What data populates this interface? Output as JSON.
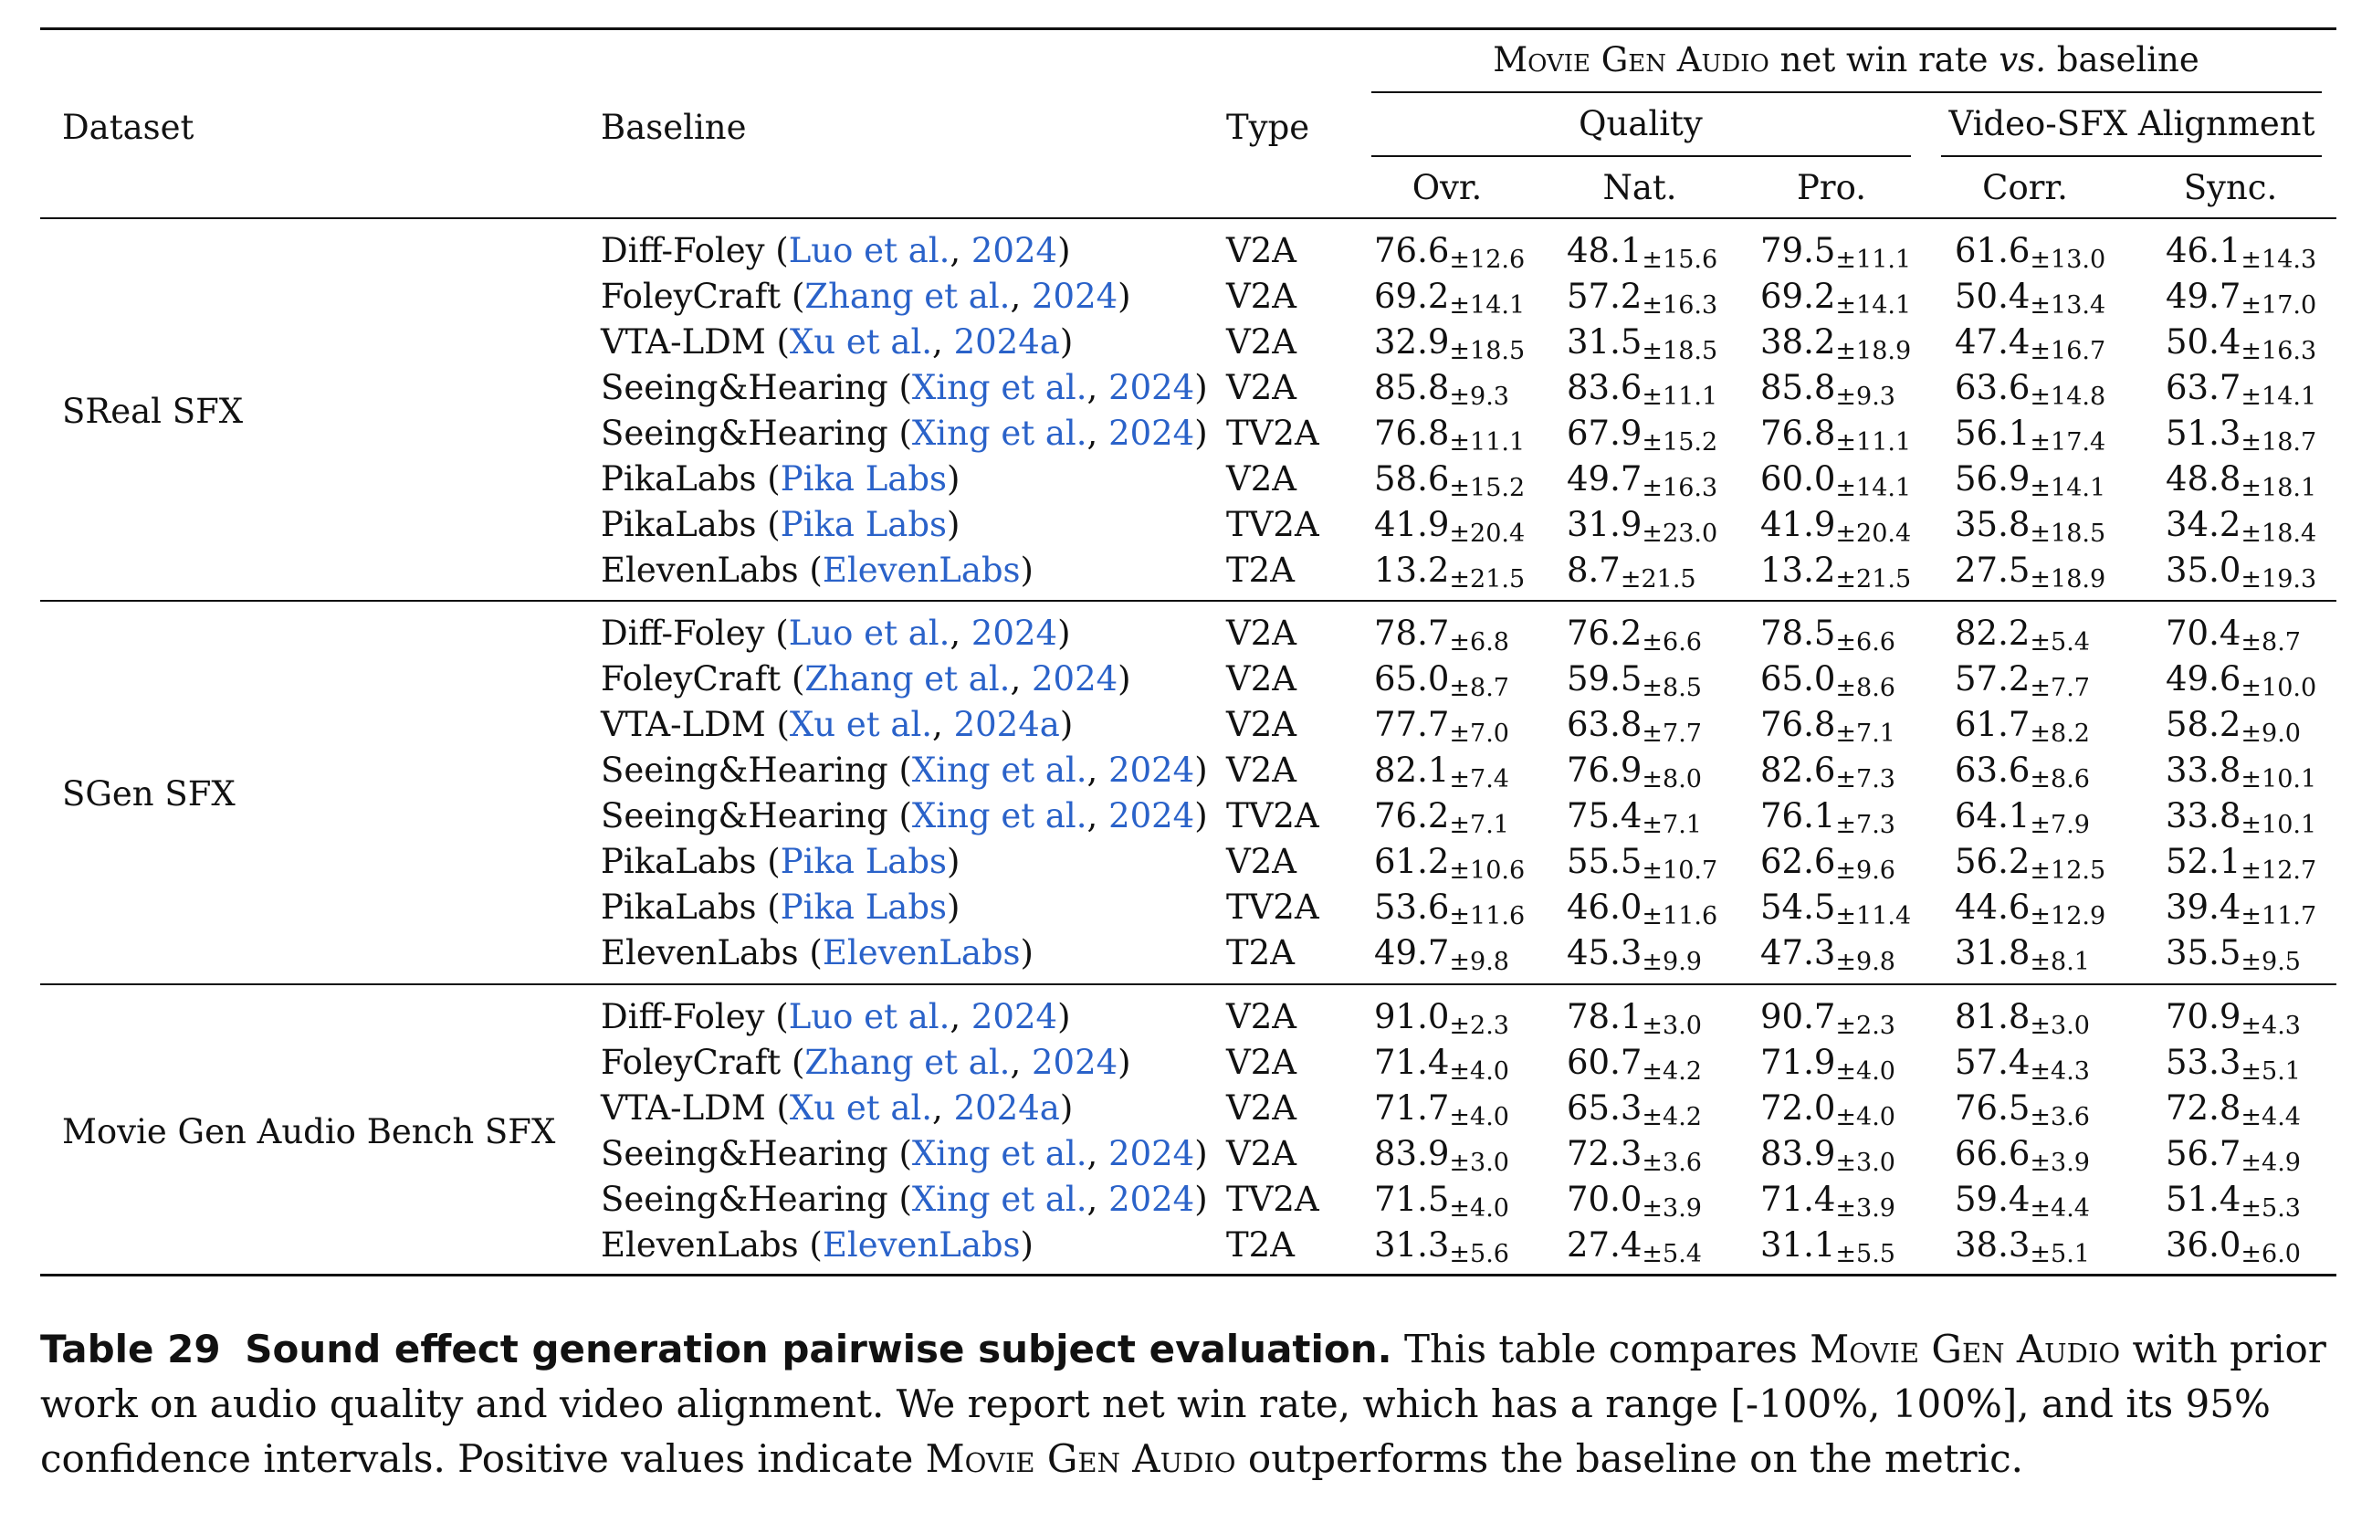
{
  "header": {
    "dataset": "Dataset",
    "baseline": "Baseline",
    "type": "Type",
    "super_prefix": "Movie Gen Audio",
    "super_mid": " net win rate ",
    "super_vs": "vs.",
    "super_suffix": " baseline",
    "quality": "Quality",
    "alignment": "Video-SFX Alignment",
    "metrics": [
      "Ovr.",
      "Nat.",
      "Pro.",
      "Corr.",
      "Sync."
    ]
  },
  "groups": [
    {
      "dataset": "SReal SFX",
      "rows": [
        {
          "name": "Diff-Foley",
          "cite_a": "Luo et al.",
          "cite_b": "2024",
          "type": "V2A",
          "vals": [
            [
              "76.6",
              "±12.6"
            ],
            [
              "48.1",
              "±15.6"
            ],
            [
              "79.5",
              "±11.1"
            ],
            [
              "61.6",
              "±13.0"
            ],
            [
              "46.1",
              "±14.3"
            ]
          ]
        },
        {
          "name": "FoleyCraft",
          "cite_a": "Zhang et al.",
          "cite_b": "2024",
          "type": "V2A",
          "vals": [
            [
              "69.2",
              "±14.1"
            ],
            [
              "57.2",
              "±16.3"
            ],
            [
              "69.2",
              "±14.1"
            ],
            [
              "50.4",
              "±13.4"
            ],
            [
              "49.7",
              "±17.0"
            ]
          ]
        },
        {
          "name": "VTA-LDM",
          "cite_a": "Xu et al.",
          "cite_b": "2024a",
          "type": "V2A",
          "vals": [
            [
              "32.9",
              "±18.5"
            ],
            [
              "31.5",
              "±18.5"
            ],
            [
              "38.2",
              "±18.9"
            ],
            [
              "47.4",
              "±16.7"
            ],
            [
              "50.4",
              "±16.3"
            ]
          ]
        },
        {
          "name": "Seeing&Hearing",
          "cite_a": "Xing et al.",
          "cite_b": "2024",
          "type": "V2A",
          "vals": [
            [
              "85.8",
              "±9.3"
            ],
            [
              "83.6",
              "±11.1"
            ],
            [
              "85.8",
              "±9.3"
            ],
            [
              "63.6",
              "±14.8"
            ],
            [
              "63.7",
              "±14.1"
            ]
          ]
        },
        {
          "name": "Seeing&Hearing",
          "cite_a": "Xing et al.",
          "cite_b": "2024",
          "type": "TV2A",
          "vals": [
            [
              "76.8",
              "±11.1"
            ],
            [
              "67.9",
              "±15.2"
            ],
            [
              "76.8",
              "±11.1"
            ],
            [
              "56.1",
              "±17.4"
            ],
            [
              "51.3",
              "±18.7"
            ]
          ]
        },
        {
          "name": "PikaLabs",
          "cite_a": "Pika Labs",
          "cite_b": "",
          "type": "V2A",
          "vals": [
            [
              "58.6",
              "±15.2"
            ],
            [
              "49.7",
              "±16.3"
            ],
            [
              "60.0",
              "±14.1"
            ],
            [
              "56.9",
              "±14.1"
            ],
            [
              "48.8",
              "±18.1"
            ]
          ]
        },
        {
          "name": "PikaLabs",
          "cite_a": "Pika Labs",
          "cite_b": "",
          "type": "TV2A",
          "vals": [
            [
              "41.9",
              "±20.4"
            ],
            [
              "31.9",
              "±23.0"
            ],
            [
              "41.9",
              "±20.4"
            ],
            [
              "35.8",
              "±18.5"
            ],
            [
              "34.2",
              "±18.4"
            ]
          ]
        },
        {
          "name": "ElevenLabs",
          "cite_a": "ElevenLabs",
          "cite_b": "",
          "type": "T2A",
          "vals": [
            [
              "13.2",
              "±21.5"
            ],
            [
              "8.7",
              "±21.5"
            ],
            [
              "13.2",
              "±21.5"
            ],
            [
              "27.5",
              "±18.9"
            ],
            [
              "35.0",
              "±19.3"
            ]
          ]
        }
      ]
    },
    {
      "dataset": "SGen SFX",
      "rows": [
        {
          "name": "Diff-Foley",
          "cite_a": "Luo et al.",
          "cite_b": "2024",
          "type": "V2A",
          "vals": [
            [
              "78.7",
              "±6.8"
            ],
            [
              "76.2",
              "±6.6"
            ],
            [
              "78.5",
              "±6.6"
            ],
            [
              "82.2",
              "±5.4"
            ],
            [
              "70.4",
              "±8.7"
            ]
          ]
        },
        {
          "name": "FoleyCraft",
          "cite_a": "Zhang et al.",
          "cite_b": "2024",
          "type": "V2A",
          "vals": [
            [
              "65.0",
              "±8.7"
            ],
            [
              "59.5",
              "±8.5"
            ],
            [
              "65.0",
              "±8.6"
            ],
            [
              "57.2",
              "±7.7"
            ],
            [
              "49.6",
              "±10.0"
            ]
          ]
        },
        {
          "name": "VTA-LDM",
          "cite_a": "Xu et al.",
          "cite_b": "2024a",
          "type": "V2A",
          "vals": [
            [
              "77.7",
              "±7.0"
            ],
            [
              "63.8",
              "±7.7"
            ],
            [
              "76.8",
              "±7.1"
            ],
            [
              "61.7",
              "±8.2"
            ],
            [
              "58.2",
              "±9.0"
            ]
          ]
        },
        {
          "name": "Seeing&Hearing",
          "cite_a": "Xing et al.",
          "cite_b": "2024",
          "type": "V2A",
          "vals": [
            [
              "82.1",
              "±7.4"
            ],
            [
              "76.9",
              "±8.0"
            ],
            [
              "82.6",
              "±7.3"
            ],
            [
              "63.6",
              "±8.6"
            ],
            [
              "33.8",
              "±10.1"
            ]
          ]
        },
        {
          "name": "Seeing&Hearing",
          "cite_a": "Xing et al.",
          "cite_b": "2024",
          "type": "TV2A",
          "vals": [
            [
              "76.2",
              "±7.1"
            ],
            [
              "75.4",
              "±7.1"
            ],
            [
              "76.1",
              "±7.3"
            ],
            [
              "64.1",
              "±7.9"
            ],
            [
              "33.8",
              "±10.1"
            ]
          ]
        },
        {
          "name": "PikaLabs",
          "cite_a": "Pika Labs",
          "cite_b": "",
          "type": "V2A",
          "vals": [
            [
              "61.2",
              "±10.6"
            ],
            [
              "55.5",
              "±10.7"
            ],
            [
              "62.6",
              "±9.6"
            ],
            [
              "56.2",
              "±12.5"
            ],
            [
              "52.1",
              "±12.7"
            ]
          ]
        },
        {
          "name": "PikaLabs",
          "cite_a": "Pika Labs",
          "cite_b": "",
          "type": "TV2A",
          "vals": [
            [
              "53.6",
              "±11.6"
            ],
            [
              "46.0",
              "±11.6"
            ],
            [
              "54.5",
              "±11.4"
            ],
            [
              "44.6",
              "±12.9"
            ],
            [
              "39.4",
              "±11.7"
            ]
          ]
        },
        {
          "name": "ElevenLabs",
          "cite_a": "ElevenLabs",
          "cite_b": "",
          "type": "T2A",
          "vals": [
            [
              "49.7",
              "±9.8"
            ],
            [
              "45.3",
              "±9.9"
            ],
            [
              "47.3",
              "±9.8"
            ],
            [
              "31.8",
              "±8.1"
            ],
            [
              "35.5",
              "±9.5"
            ]
          ]
        }
      ]
    },
    {
      "dataset": "Movie Gen Audio Bench SFX",
      "rows": [
        {
          "name": "Diff-Foley",
          "cite_a": "Luo et al.",
          "cite_b": "2024",
          "type": "V2A",
          "vals": [
            [
              "91.0",
              "±2.3"
            ],
            [
              "78.1",
              "±3.0"
            ],
            [
              "90.7",
              "±2.3"
            ],
            [
              "81.8",
              "±3.0"
            ],
            [
              "70.9",
              "±4.3"
            ]
          ]
        },
        {
          "name": "FoleyCraft",
          "cite_a": "Zhang et al.",
          "cite_b": "2024",
          "type": "V2A",
          "vals": [
            [
              "71.4",
              "±4.0"
            ],
            [
              "60.7",
              "±4.2"
            ],
            [
              "71.9",
              "±4.0"
            ],
            [
              "57.4",
              "±4.3"
            ],
            [
              "53.3",
              "±5.1"
            ]
          ]
        },
        {
          "name": "VTA-LDM",
          "cite_a": "Xu et al.",
          "cite_b": "2024a",
          "type": "V2A",
          "vals": [
            [
              "71.7",
              "±4.0"
            ],
            [
              "65.3",
              "±4.2"
            ],
            [
              "72.0",
              "±4.0"
            ],
            [
              "76.5",
              "±3.6"
            ],
            [
              "72.8",
              "±4.4"
            ]
          ]
        },
        {
          "name": "Seeing&Hearing",
          "cite_a": "Xing et al.",
          "cite_b": "2024",
          "type": "V2A",
          "vals": [
            [
              "83.9",
              "±3.0"
            ],
            [
              "72.3",
              "±3.6"
            ],
            [
              "83.9",
              "±3.0"
            ],
            [
              "66.6",
              "±3.9"
            ],
            [
              "56.7",
              "±4.9"
            ]
          ]
        },
        {
          "name": "Seeing&Hearing",
          "cite_a": "Xing et al.",
          "cite_b": "2024",
          "type": "TV2A",
          "vals": [
            [
              "71.5",
              "±4.0"
            ],
            [
              "70.0",
              "±3.9"
            ],
            [
              "71.4",
              "±3.9"
            ],
            [
              "59.4",
              "±4.4"
            ],
            [
              "51.4",
              "±5.3"
            ]
          ]
        },
        {
          "name": "ElevenLabs",
          "cite_a": "ElevenLabs",
          "cite_b": "",
          "type": "T2A",
          "vals": [
            [
              "31.3",
              "±5.6"
            ],
            [
              "27.4",
              "±5.4"
            ],
            [
              "31.1",
              "±5.5"
            ],
            [
              "38.3",
              "±5.1"
            ],
            [
              "36.0",
              "±6.0"
            ]
          ]
        }
      ]
    }
  ],
  "caption": {
    "label": "Table 29",
    "title": "Sound effect generation pairwise subject evaluation.",
    "text_1": " This table compares ",
    "sc_1": "Movie Gen Audio",
    "text_2": " with prior work on audio quality and video alignment. We report net win rate, which has a range [-100%, 100%], and its 95% confidence intervals. Positive values indicate ",
    "sc_2": "Movie Gen Audio",
    "text_3": " outperforms the baseline on the metric."
  },
  "colors": {
    "citation": "#2a62c9",
    "text": "#111111"
  }
}
